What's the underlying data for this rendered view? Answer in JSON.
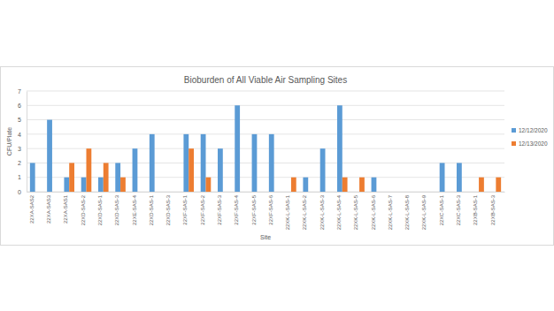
{
  "chart_data": {
    "type": "bar",
    "title": "Bioburden of All Viable Air Sampling Sites",
    "x_label": "Site",
    "y_label": "CFU/Plate",
    "categories": [
      "22XA-SAS2",
      "22XA-SAS3",
      "22XA-SAS1",
      "22XD-SAS-2",
      "22XD-SAS-1",
      "22XD-SAS-3",
      "22XE-SAS-4",
      "22XD-SAS-1",
      "22XD-SAS-3",
      "22XF-SAS-1",
      "22XF-SAS-2",
      "22XF-SAS-3",
      "22XF-SAS-4",
      "22XF-SAS-5",
      "22XF-SAS-6",
      "22XK-L-SAS-1",
      "22XK-L-SAS-2",
      "22XK-L-SAS-3",
      "22XK-L-SAS-4",
      "22XK-L-SAS-5",
      "22XK-L-SAS-6",
      "22XK-L-SAS-7",
      "22XK-L-SAS-8",
      "22XK-L-SAS-9",
      "22XC-SAS-1",
      "22XC-SAS-3",
      "22XB-SAS-1",
      "22XB-SAS-3"
    ],
    "series": [
      {
        "name": "12/12/2020",
        "color": "#5b9bd5",
        "values": [
          2,
          5,
          1,
          1,
          1,
          2,
          3,
          4,
          0,
          4,
          4,
          3,
          6,
          4,
          4,
          0,
          1,
          3,
          6,
          0,
          1,
          0,
          0,
          0,
          2,
          2,
          0,
          0
        ]
      },
      {
        "name": "12/13/2020",
        "color": "#ed7d31",
        "values": [
          0,
          0,
          2,
          3,
          2,
          1,
          0,
          0,
          0,
          3,
          1,
          0,
          0,
          0,
          0,
          1,
          0,
          0,
          1,
          1,
          0,
          0,
          0,
          0,
          0,
          0,
          1,
          1
        ]
      }
    ],
    "ylim": [
      0,
      7
    ],
    "yticks": [
      0,
      1,
      2,
      3,
      4,
      5,
      6,
      7
    ],
    "grid": true,
    "legend": "right"
  }
}
